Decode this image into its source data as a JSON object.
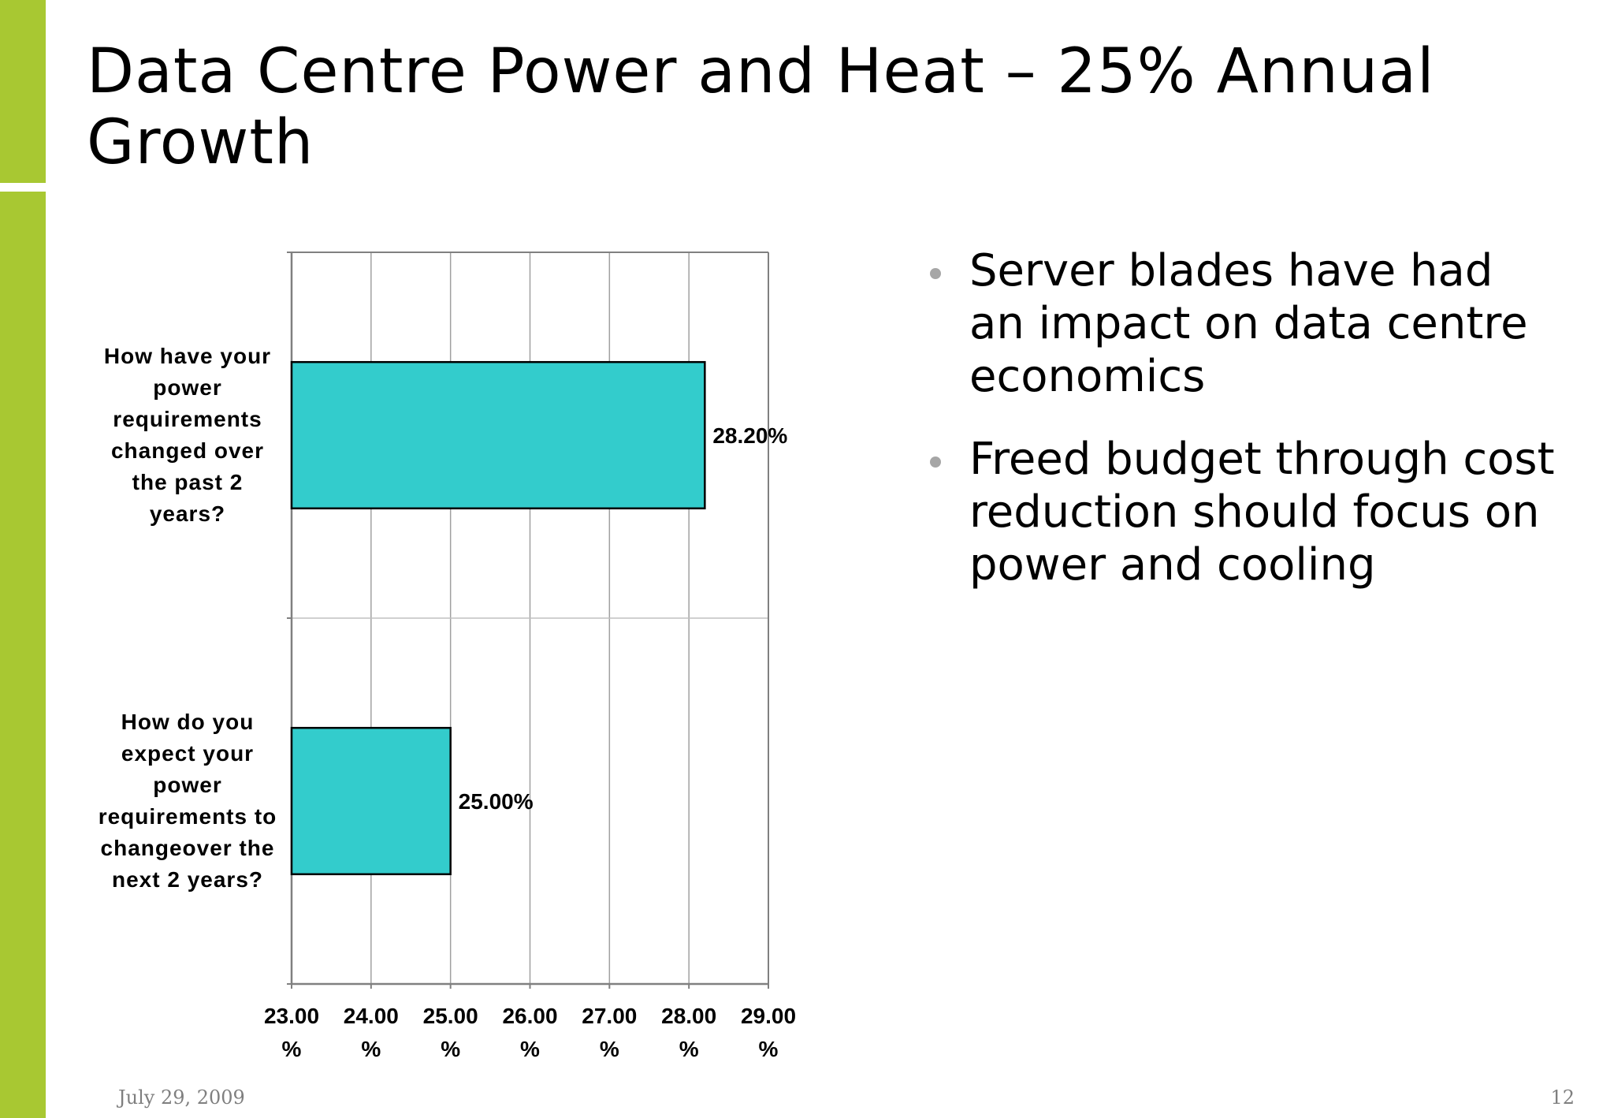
{
  "slide": {
    "title": "Data Centre Power and Heat – 25% Annual Growth",
    "bullets": [
      "Server blades have had an impact on data centre economics",
      "Freed budget through cost reduction should focus on power and cooling"
    ],
    "footer_date": "July 29, 2009",
    "page_number": "12"
  },
  "colors": {
    "accent": "#a8c832",
    "bar_fill": "#33cccc",
    "bullet_dot": "#a6a6a6",
    "footer_text": "#7f7f7f"
  },
  "chart_data": {
    "type": "bar",
    "orientation": "horizontal",
    "categories": [
      "How have your power requirements changed over the past 2 years?",
      "How do you expect your power requirements to changeover the next 2 years?"
    ],
    "values": [
      28.2,
      25.0
    ],
    "value_labels": [
      "28.20%",
      "25.00%"
    ],
    "xlim": [
      23,
      29
    ],
    "x_ticks": [
      23,
      24,
      25,
      26,
      27,
      28,
      29
    ],
    "x_tick_labels": [
      "23.00 %",
      "24.00 %",
      "25.00 %",
      "26.00 %",
      "27.00 %",
      "28.00 %",
      "29.00 %"
    ],
    "title": "",
    "xlabel": "",
    "ylabel": "",
    "grid": true,
    "legend": "none"
  }
}
